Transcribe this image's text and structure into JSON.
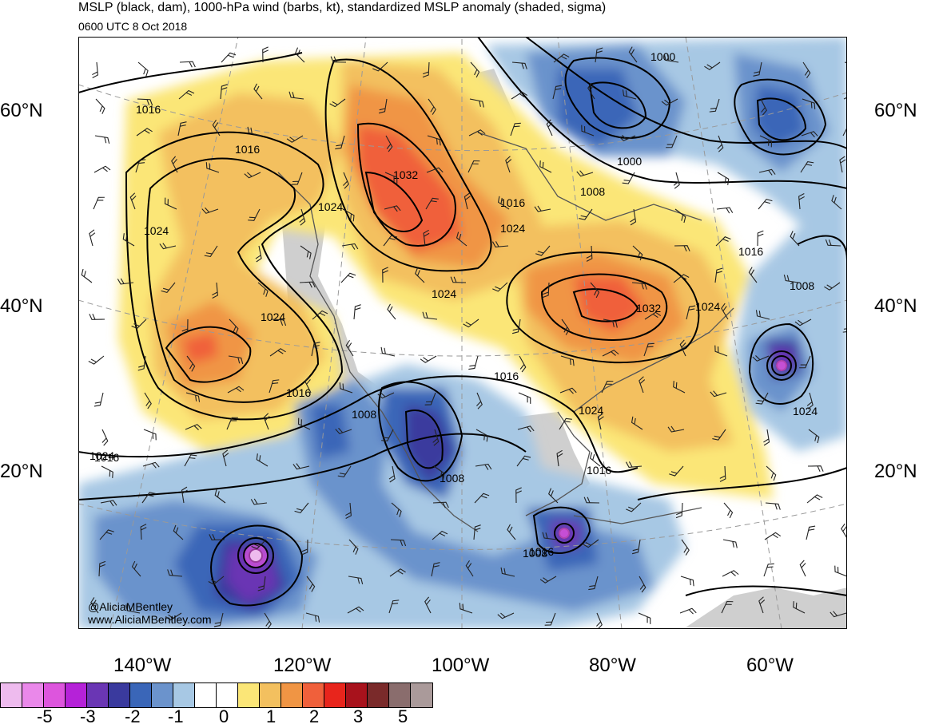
{
  "header": {
    "title": "MSLP (black, dam), 1000-hPa wind (barbs, kt), standardized MSLP anomaly (shaded, sigma)",
    "valid_time": "0600 UTC 8 Oct 2018"
  },
  "map": {
    "projection": "lambert-conformal",
    "features": [
      "coastlines",
      "country-borders",
      "state-borders",
      "lat-lon-grid",
      "wind-barbs",
      "isobars",
      "anomaly-shading"
    ],
    "lat_labels_left": [
      "60°N",
      "40°N",
      "20°N"
    ],
    "lat_labels_right": [
      "60°N",
      "40°N",
      "20°N"
    ],
    "lon_labels": [
      "140°W",
      "120°W",
      "100°W",
      "80°W",
      "60°W"
    ],
    "isobar_labels": [
      "1016",
      "1016",
      "1024",
      "1024",
      "1032",
      "1024",
      "1016",
      "1024",
      "1000",
      "1000",
      "1008",
      "1024",
      "1032",
      "1024",
      "1016",
      "1008",
      "1024",
      "1024",
      "1016",
      "1016",
      "1008",
      "1016",
      "1024",
      "1008",
      "1016",
      "1016",
      "1008"
    ],
    "pressure_systems": [
      {
        "type": "high",
        "location": "northern Rockies / Alberta",
        "max_pressure": "1032"
      },
      {
        "type": "high",
        "location": "Great Lakes / Ontario",
        "max_pressure": "1032"
      },
      {
        "type": "high",
        "location": "northeast Pacific",
        "max_pressure": "1024"
      },
      {
        "type": "low",
        "location": "Labrador Sea",
        "min_pressure": "1000"
      },
      {
        "type": "low",
        "location": "western Atlantic (tropical cyclone)",
        "min_pressure": "<1008"
      },
      {
        "type": "low",
        "location": "northwest Caribbean (tropical cyclone)",
        "min_pressure": "1008"
      },
      {
        "type": "low",
        "location": "eastern Pacific (tropical cyclone)",
        "min_pressure": "<1008"
      }
    ]
  },
  "credits": {
    "handle": "@AliciaMBentley",
    "website": "www.AliciaMBentley.com"
  },
  "colorbar": {
    "colors": [
      "#eebbee",
      "#ea88ea",
      "#dd55dd",
      "#b522d8",
      "#6a36b4",
      "#3a3a9e",
      "#3a66b8",
      "#6b93cc",
      "#a7c8e4",
      "#ffffff",
      "#ffffff",
      "#fbe677",
      "#f3c05f",
      "#f09544",
      "#f0603b",
      "#e8251c",
      "#a8121c",
      "#7a2a2a",
      "#8a6d6d",
      "#aa9a9a"
    ],
    "labels": [
      "-5",
      "-3",
      "-2",
      "-1",
      "0",
      "1",
      "2",
      "3",
      "5"
    ]
  },
  "palette": {
    "land_gray": "#cfcfcf",
    "coast": "#555555"
  }
}
